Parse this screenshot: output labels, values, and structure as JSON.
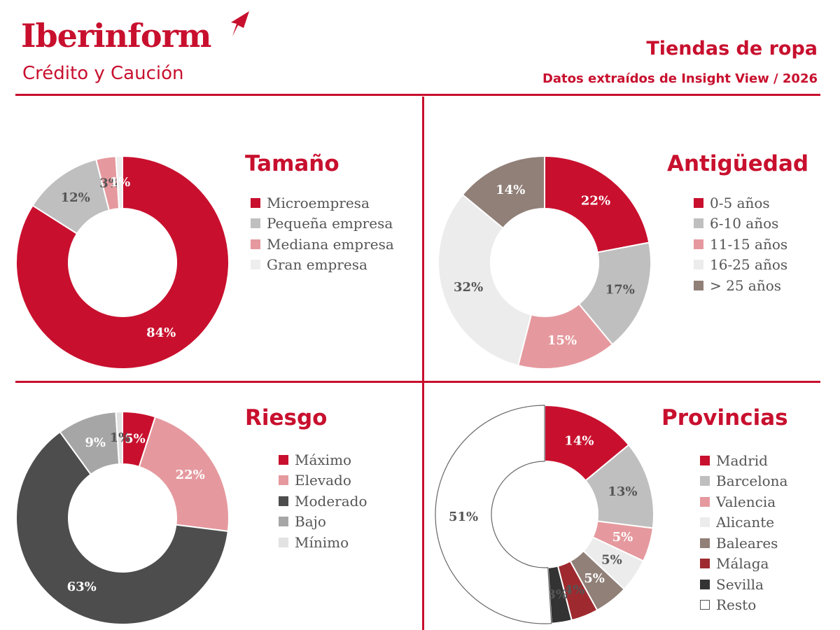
{
  "header": {
    "logo_name": "Iberinform",
    "logo_sub": "Crédito y Caución",
    "title": "Tiendas de ropa",
    "subtitle": "Datos extraídos de Insight View / 2026"
  },
  "chart_data": [
    {
      "type": "pie",
      "title": "Tamaño",
      "legend_position": "right",
      "categories": [
        "Microempresa",
        "Pequeña empresa",
        "Mediana empresa",
        "Gran empresa"
      ],
      "values": [
        84,
        12,
        3,
        1
      ],
      "labels": [
        "84%",
        "12%",
        "3%",
        "1%"
      ],
      "colors": [
        "#c8102e",
        "#bfbfbf",
        "#e5999e",
        "#eeeeee"
      ],
      "label_colors": [
        "#ffffff",
        "#555555",
        "#555555",
        "#ffffff"
      ]
    },
    {
      "type": "pie",
      "title": "Antigüedad",
      "legend_position": "right",
      "categories": [
        "0-5 años",
        "6-10 años",
        "11-15 años",
        "16-25 años",
        "> 25 años"
      ],
      "values": [
        22,
        17,
        15,
        32,
        14
      ],
      "labels": [
        "22%",
        "17%",
        "15%",
        "32%",
        "14%"
      ],
      "colors": [
        "#c8102e",
        "#bfbfbf",
        "#e5999e",
        "#ececec",
        "#918078"
      ],
      "label_colors": [
        "#ffffff",
        "#555555",
        "#ffffff",
        "#555555",
        "#ffffff"
      ]
    },
    {
      "type": "pie",
      "title": "Riesgo",
      "legend_position": "right",
      "categories": [
        "Máximo",
        "Elevado",
        "Moderado",
        "Bajo",
        "Mínimo"
      ],
      "values": [
        5,
        22,
        63,
        9,
        1
      ],
      "labels": [
        "5%",
        "22%",
        "63%",
        "9%",
        "1%"
      ],
      "colors": [
        "#c8102e",
        "#e5999e",
        "#4d4d4d",
        "#a6a6a6",
        "#e2e2e2"
      ],
      "label_colors": [
        "#ffffff",
        "#ffffff",
        "#ffffff",
        "#ffffff",
        "#555555"
      ]
    },
    {
      "type": "pie",
      "title": "Provincias",
      "legend_position": "right",
      "categories": [
        "Madrid",
        "Barcelona",
        "Valencia",
        "Alicante",
        "Baleares",
        "Málaga",
        "Sevilla",
        "Resto"
      ],
      "values": [
        14,
        13,
        5,
        5,
        5,
        4,
        3,
        51
      ],
      "labels": [
        "14%",
        "13%",
        "5%",
        "5%",
        "5%",
        "4%",
        "3%",
        "51%"
      ],
      "colors": [
        "#c8102e",
        "#bfbfbf",
        "#e5999e",
        "#ececec",
        "#918078",
        "#9e2a2f",
        "#333333",
        "#ffffff"
      ],
      "label_colors": [
        "#ffffff",
        "#555555",
        "#ffffff",
        "#555555",
        "#ffffff",
        "#555555",
        "#555555",
        "#555555"
      ]
    }
  ]
}
